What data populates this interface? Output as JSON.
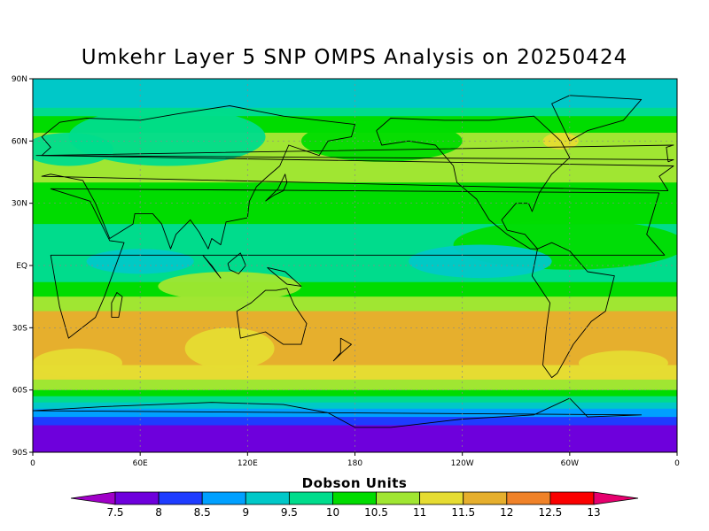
{
  "title": "Umkehr Layer 5 SNP OMPS Analysis on 20250424",
  "colorbar": {
    "title": "Dobson Units",
    "levels": [
      "7.5",
      "8",
      "8.5",
      "9",
      "9.5",
      "10",
      "10.5",
      "11",
      "11.5",
      "12",
      "12.5",
      "13"
    ],
    "colors": [
      "#a000c8",
      "#6e00dc",
      "#1e3cff",
      "#00a0ff",
      "#00c8c8",
      "#00dc8c",
      "#00dc00",
      "#a0e632",
      "#e6dc32",
      "#e6af2d",
      "#f08228",
      "#fa0000",
      "#e6006e"
    ]
  },
  "map": {
    "lat_labels": [
      "90N",
      "60N",
      "30N",
      "EQ",
      "30S",
      "60S",
      "90S"
    ],
    "lon_labels": [
      "0",
      "60E",
      "120E",
      "180",
      "120W",
      "60W",
      "0"
    ],
    "grid": "dotted",
    "lat_bands": [
      {
        "from": 90,
        "to": 76,
        "value": 9
      },
      {
        "from": 76,
        "to": 72,
        "value": 9.5
      },
      {
        "from": 72,
        "to": 64,
        "value": 10
      },
      {
        "from": 64,
        "to": 40,
        "value": 10.5
      },
      {
        "from": 40,
        "to": 20,
        "value": 10
      },
      {
        "from": 20,
        "to": 3,
        "value": 9.5
      },
      {
        "from": 3,
        "to": -8,
        "value": 9.5
      },
      {
        "from": -8,
        "to": -15,
        "value": 10
      },
      {
        "from": -15,
        "to": -22,
        "value": 10.5
      },
      {
        "from": -22,
        "to": -48,
        "value": 11.5
      },
      {
        "from": -48,
        "to": -55,
        "value": 11
      },
      {
        "from": -55,
        "to": -60,
        "value": 10.5
      },
      {
        "from": -60,
        "to": -63,
        "value": 10
      },
      {
        "from": -63,
        "to": -66,
        "value": 9.5
      },
      {
        "from": -66,
        "to": -69,
        "value": 9
      },
      {
        "from": -69,
        "to": -73,
        "value": 8.5
      },
      {
        "from": -73,
        "to": -77,
        "value": 8
      },
      {
        "from": -77,
        "to": -90,
        "value": 7.5
      }
    ]
  }
}
